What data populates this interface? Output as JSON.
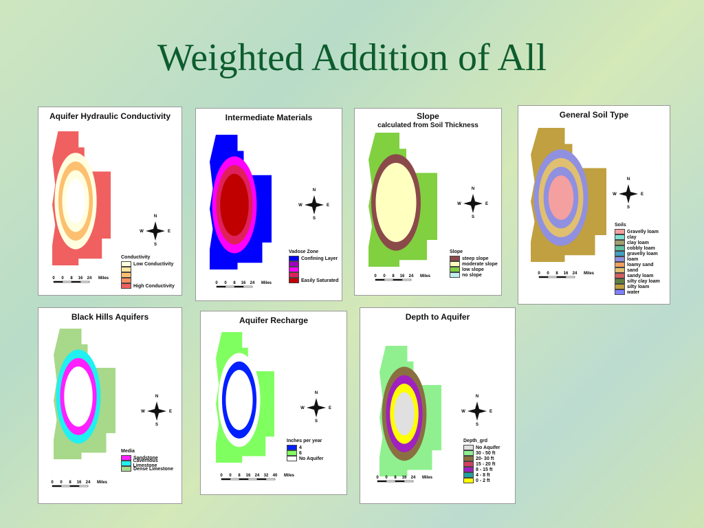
{
  "title": "Weighted Addition of All",
  "compass": {
    "n": "N",
    "s": "S",
    "w": "W",
    "e": "E"
  },
  "panels": [
    {
      "title": "Aquifer Hydraulic Conductivity",
      "legend": {
        "title": "Conductivity",
        "items": [
          {
            "label": "Low Conductivity",
            "color": "#ffffe0"
          },
          {
            "color": "#ffe6a0"
          },
          {
            "color": "#fcc070"
          },
          {
            "color": "#f89060"
          },
          {
            "label": "High Conductivity",
            "color": "#f06060"
          }
        ]
      },
      "scale": [
        "0",
        "0",
        "8",
        "16",
        "24",
        "Miles"
      ]
    },
    {
      "title": "Intermediate Materials",
      "legend": {
        "title": "Vadose Zone",
        "items": [
          {
            "label": "Confining Layer",
            "color": "#0000ff"
          },
          {
            "color": "#a000c0"
          },
          {
            "color": "#ff00ff"
          },
          {
            "color": "#e0205a"
          },
          {
            "label": "Easily Saturated",
            "color": "#c00000"
          }
        ]
      },
      "scale": [
        "0",
        "0",
        "8",
        "16",
        "24",
        "Miles"
      ]
    },
    {
      "title": "Slope",
      "subtitle": "calculated from Soil Thickness",
      "legend": {
        "title": "Slope",
        "items": [
          {
            "label": "steep slope",
            "color": "#8b4a4a"
          },
          {
            "label": "moderate slope",
            "color": "#ffffc0"
          },
          {
            "label": "low slope",
            "color": "#80d040"
          },
          {
            "label": "no slope",
            "color": "#c0f0f0"
          }
        ]
      },
      "scale": [
        "0",
        "0",
        "8",
        "16",
        "24",
        "Miles"
      ]
    },
    {
      "title": "General Soil Type",
      "legend": {
        "title": "Soils",
        "items": [
          {
            "label": "Gravelly loam",
            "color": "#f4a0a0"
          },
          {
            "label": "clay",
            "color": "#80e0d0"
          },
          {
            "label": "clay loam",
            "color": "#a0a070"
          },
          {
            "label": "cobbly loam",
            "color": "#60c0a0"
          },
          {
            "label": "gravelly loam",
            "color": "#40a0c0"
          },
          {
            "label": "loam",
            "color": "#9090e0"
          },
          {
            "label": "loamy sand",
            "color": "#f0a060"
          },
          {
            "label": "sand",
            "color": "#e0c070"
          },
          {
            "label": "sandy loam",
            "color": "#d06060"
          },
          {
            "label": "silty clay loam",
            "color": "#608040"
          },
          {
            "label": "silty loam",
            "color": "#c0a040"
          },
          {
            "label": "water",
            "color": "#8080ff"
          }
        ]
      },
      "scale": [
        "0",
        "0",
        "8",
        "16",
        "24",
        "Miles"
      ]
    },
    {
      "title": "Black Hills Aquifers",
      "legend": {
        "title": "Media",
        "items": [
          {
            "label": "Sandstone",
            "color": "#ff20ff"
          },
          {
            "label": "Cavernous Limestone",
            "color": "#20f0f0"
          },
          {
            "label": "Dense Limestone",
            "color": "#a8d88a"
          }
        ]
      },
      "scale": [
        "0",
        "0",
        "8",
        "16",
        "24",
        "Miles"
      ]
    },
    {
      "title": "Aquifer Recharge",
      "legend": {
        "title": "Inches per year",
        "items": [
          {
            "label": "4",
            "color": "#0020ff"
          },
          {
            "label": "6",
            "color": "#80ff60"
          },
          {
            "label": "No Aquifer",
            "color": "#ffffff"
          }
        ]
      },
      "scale": [
        "0",
        "0",
        "8",
        "16",
        "24",
        "32",
        "40",
        "Miles"
      ]
    },
    {
      "title": "Depth to Aquifer",
      "legend": {
        "title": "Depth_grd",
        "items": [
          {
            "label": "No Aquifer",
            "color": "#e0e0e0"
          },
          {
            "label": "30 - 50 ft",
            "color": "#90f090"
          },
          {
            "label": "20- 30 ft",
            "color": "#8a7040"
          },
          {
            "label": "15 - 20 ft",
            "color": "#d04060"
          },
          {
            "label": "8 - 15 ft",
            "color": "#a020c0"
          },
          {
            "label": "4 - 8 ft",
            "color": "#20a0a0"
          },
          {
            "label": "0 - 2 ft",
            "color": "#ffff00"
          }
        ]
      },
      "scale": [
        "0",
        "0",
        "8",
        "16",
        "24",
        "Miles"
      ]
    }
  ]
}
